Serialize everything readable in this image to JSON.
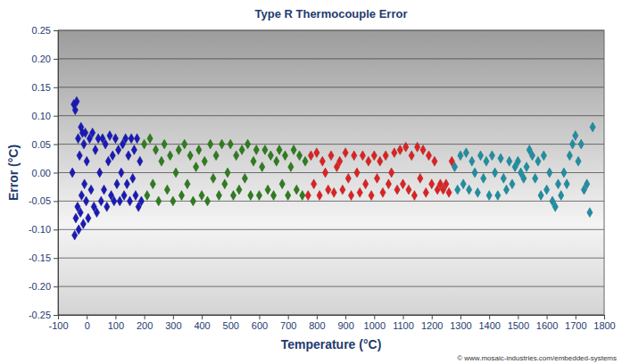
{
  "chart_data": {
    "type": "scatter",
    "title": "Type R Thermocouple Error",
    "x_label": "Temperature (°C)",
    "y_label": "Error (°C)",
    "annotations": [
      "© www.mosaic-industries.com/embedded-systems"
    ],
    "xlim": [
      -100,
      1800
    ],
    "xticks": [
      -100,
      0,
      100,
      200,
      300,
      400,
      500,
      600,
      700,
      800,
      900,
      1000,
      1100,
      1200,
      1300,
      1400,
      1500,
      1600,
      1700,
      1800
    ],
    "ylim": [
      -0.25,
      0.25
    ],
    "yticks": [
      -0.25,
      {
        "value": -0.2,
        "label": "-0.20"
      },
      -0.15,
      {
        "value": -0.1,
        "label": "-0.10"
      },
      -0.05,
      {
        "value": 0,
        "label": "0.00"
      },
      0.05,
      {
        "value": 0.1,
        "label": "0.10"
      },
      0.15,
      {
        "value": 0.2,
        "label": "0.20"
      },
      0.25
    ],
    "grid": true,
    "marker": "diamond",
    "series": [
      {
        "color": "#1a1ab8",
        "x": [
          -50,
          -45,
          -42,
          -40,
          -38,
          -35,
          -32,
          -30,
          -28,
          -25,
          -22,
          -20,
          -18,
          -15,
          -12,
          -10,
          -8,
          -5,
          -2,
          0,
          5,
          10,
          15,
          20,
          25,
          30,
          35,
          40,
          45,
          50,
          55,
          60,
          65,
          70,
          75,
          80,
          85,
          90,
          95,
          100,
          105,
          110,
          115,
          120,
          125,
          130,
          135,
          140,
          145,
          150,
          155,
          160,
          165,
          170,
          175,
          180,
          185,
          190
        ],
        "values": [
          0.0,
          0.12,
          -0.11,
          0.11,
          -0.08,
          0.125,
          -0.06,
          0.06,
          -0.1,
          0.03,
          -0.07,
          0.08,
          -0.04,
          0.07,
          -0.09,
          0.05,
          -0.02,
          0.07,
          -0.05,
          0.02,
          -0.08,
          0.06,
          -0.03,
          0.07,
          -0.06,
          0.04,
          -0.07,
          0.06,
          0.0,
          -0.05,
          0.06,
          -0.03,
          0.05,
          -0.06,
          0.02,
          0.065,
          -0.04,
          0.03,
          -0.05,
          0.06,
          -0.02,
          0.04,
          -0.05,
          0.0,
          0.05,
          -0.04,
          0.06,
          -0.02,
          0.03,
          -0.05,
          0.06,
          -0.01,
          0.04,
          -0.04,
          0.06,
          -0.06,
          0.02,
          -0.05
        ]
      },
      {
        "color": "#2e7d1e",
        "x": [
          200,
          210,
          220,
          230,
          240,
          250,
          260,
          270,
          280,
          290,
          300,
          310,
          320,
          330,
          340,
          350,
          360,
          370,
          380,
          390,
          400,
          410,
          420,
          430,
          440,
          450,
          460,
          470,
          480,
          490,
          500,
          510,
          520,
          530,
          540,
          550,
          560,
          570,
          580,
          590,
          600,
          610,
          620,
          630,
          640,
          650,
          660,
          670,
          680,
          690,
          700,
          710,
          720,
          730,
          740,
          750,
          760
        ],
        "values": [
          0.05,
          -0.04,
          0.06,
          -0.02,
          0.04,
          -0.05,
          0.02,
          0.05,
          -0.03,
          0.03,
          -0.05,
          0.0,
          0.04,
          -0.04,
          0.05,
          -0.02,
          0.03,
          -0.05,
          0.01,
          0.04,
          -0.04,
          0.02,
          -0.05,
          0.05,
          -0.01,
          0.03,
          -0.04,
          0.05,
          -0.02,
          0.0,
          0.05,
          -0.04,
          0.03,
          -0.03,
          0.04,
          -0.01,
          0.05,
          -0.04,
          0.02,
          0.04,
          -0.04,
          0.01,
          0.04,
          -0.03,
          0.03,
          -0.04,
          0.02,
          0.04,
          -0.02,
          0.03,
          -0.04,
          0.01,
          0.04,
          -0.03,
          0.03,
          -0.04,
          0.02
        ]
      },
      {
        "color": "#dd2222",
        "x": [
          770,
          780,
          790,
          800,
          810,
          820,
          830,
          840,
          850,
          860,
          870,
          880,
          890,
          900,
          910,
          920,
          930,
          940,
          950,
          960,
          970,
          980,
          990,
          1000,
          1010,
          1020,
          1030,
          1040,
          1050,
          1060,
          1070,
          1080,
          1090,
          1100,
          1110,
          1120,
          1130,
          1140,
          1150,
          1160,
          1170,
          1180,
          1190,
          1200,
          1210,
          1220,
          1230,
          1240,
          1250,
          1260,
          1270
        ],
        "values": [
          -0.04,
          0.03,
          -0.02,
          0.035,
          -0.04,
          0.02,
          0.0,
          -0.03,
          0.03,
          -0.035,
          0.01,
          0.02,
          -0.03,
          0.035,
          -0.01,
          -0.04,
          0.03,
          0.0,
          -0.035,
          0.03,
          -0.02,
          0.02,
          -0.04,
          0.03,
          -0.01,
          0.02,
          -0.035,
          0.03,
          -0.02,
          0.0,
          0.035,
          -0.03,
          0.04,
          -0.02,
          0.045,
          -0.03,
          0.03,
          -0.04,
          0.045,
          -0.01,
          0.04,
          -0.035,
          0.03,
          -0.02,
          0.02,
          -0.03,
          -0.02,
          -0.03,
          -0.02,
          -0.035,
          0.02
        ]
      },
      {
        "color": "#1f8fa3",
        "x": [
          1280,
          1290,
          1300,
          1310,
          1320,
          1330,
          1340,
          1350,
          1360,
          1370,
          1380,
          1390,
          1400,
          1410,
          1420,
          1430,
          1440,
          1450,
          1460,
          1470,
          1480,
          1490,
          1500,
          1510,
          1520,
          1530,
          1540,
          1550,
          1560,
          1570,
          1580,
          1590,
          1600,
          1610,
          1620,
          1630,
          1640,
          1650,
          1660,
          1670,
          1680,
          1690,
          1700,
          1710,
          1720,
          1730,
          1740,
          1750,
          1760
        ],
        "values": [
          0.01,
          -0.03,
          0.03,
          -0.02,
          0.035,
          -0.03,
          0.02,
          0.0,
          -0.035,
          0.03,
          -0.01,
          0.02,
          -0.04,
          0.03,
          0.0,
          -0.04,
          0.025,
          -0.01,
          -0.03,
          0.02,
          -0.02,
          0.01,
          0.02,
          0.0,
          -0.01,
          0.01,
          0.04,
          0.03,
          -0.01,
          0.02,
          -0.04,
          0.03,
          -0.03,
          0.0,
          -0.05,
          -0.06,
          -0.02,
          -0.04,
          0.0,
          -0.02,
          0.03,
          0.05,
          0.065,
          0.02,
          0.05,
          -0.03,
          -0.02,
          -0.07,
          0.08
        ]
      }
    ]
  }
}
